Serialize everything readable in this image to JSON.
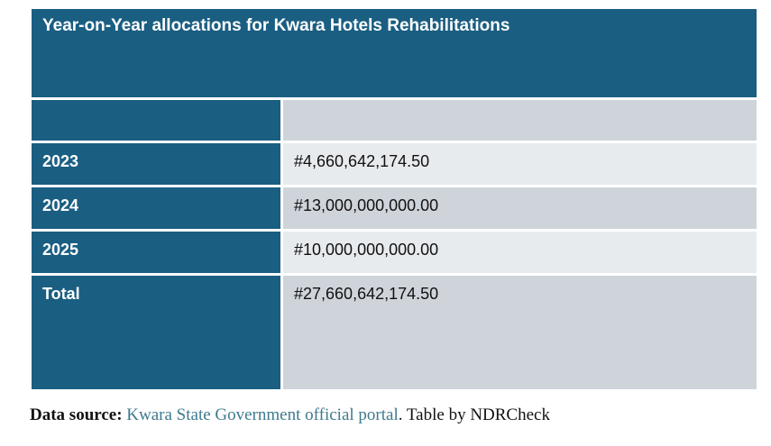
{
  "table": {
    "title": "Year-on-Year allocations for Kwara Hotels Rehabilitations",
    "header": {
      "left": "",
      "right": ""
    },
    "rows": [
      {
        "year": "2023",
        "amount": "#4,660,642,174.50"
      },
      {
        "year": "2024",
        "amount": "#13,000,000,000.00"
      },
      {
        "year": "2025",
        "amount": "#10,000,000,000.00"
      }
    ],
    "total": {
      "label": "Total",
      "amount": "#27,660,642,174.50"
    }
  },
  "caption": {
    "label": "Data source:",
    "link_text": "Kwara State Government official portal",
    "suffix": ". Table by NDRCheck"
  },
  "colors": {
    "header_blue": "#1a5e82",
    "cell_gray_dark": "#cfd4db",
    "cell_gray_light": "#e8ebee",
    "link": "#3e7a8f"
  }
}
